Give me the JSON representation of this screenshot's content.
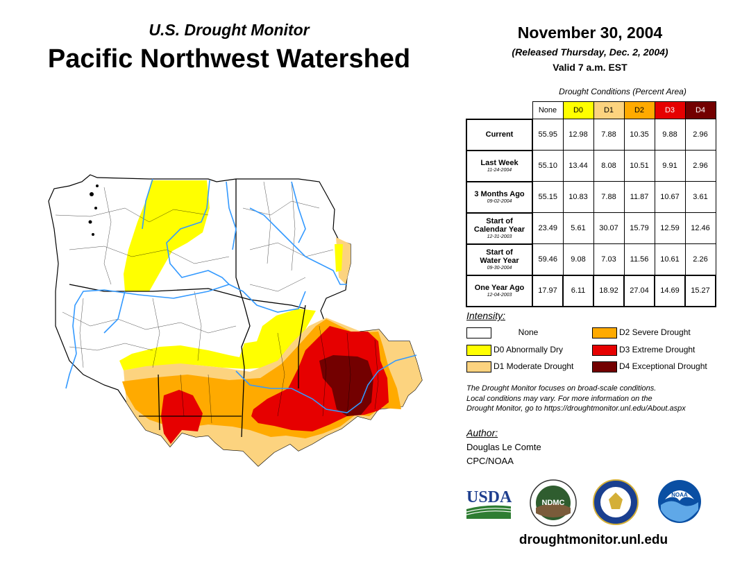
{
  "header": {
    "subtitle": "U.S. Drought Monitor",
    "title": "Pacific Northwest Watershed",
    "date": "November 30, 2004",
    "released": "(Released Thursday, Dec. 2, 2004)",
    "valid": "Valid 7 a.m. EST"
  },
  "table": {
    "caption": "Drought Conditions (Percent Area)",
    "columns": [
      "None",
      "D0",
      "D1",
      "D2",
      "D3",
      "D4"
    ],
    "column_colors": [
      "#ffffff",
      "#ffff00",
      "#fcd37f",
      "#ffaa00",
      "#e60000",
      "#730000"
    ],
    "rows": [
      {
        "label": "Current",
        "label2": "",
        "date": "",
        "values": [
          "55.95",
          "12.98",
          "7.88",
          "10.35",
          "9.88",
          "2.96"
        ]
      },
      {
        "label": "Last Week",
        "label2": "",
        "date": "11-24-2004",
        "values": [
          "55.10",
          "13.44",
          "8.08",
          "10.51",
          "9.91",
          "2.96"
        ]
      },
      {
        "label": "3 Months Ago",
        "label2": "",
        "date": "09-02-2004",
        "values": [
          "55.15",
          "10.83",
          "7.88",
          "11.87",
          "10.67",
          "3.61"
        ]
      },
      {
        "label": "Start of",
        "label2": "Calendar Year",
        "date": "12-31-2003",
        "values": [
          "23.49",
          "5.61",
          "30.07",
          "15.79",
          "12.59",
          "12.46"
        ]
      },
      {
        "label": "Start of",
        "label2": "Water Year",
        "date": "09-30-2004",
        "values": [
          "59.46",
          "9.08",
          "7.03",
          "11.56",
          "10.61",
          "2.26"
        ]
      },
      {
        "label": "One Year Ago",
        "label2": "",
        "date": "12-04-2003",
        "values": [
          "17.97",
          "6.11",
          "18.92",
          "27.04",
          "14.69",
          "15.27"
        ]
      }
    ]
  },
  "legend": {
    "title": "Intensity:",
    "items": [
      {
        "label": "None",
        "color": "#ffffff"
      },
      {
        "label": "D0 Abnormally Dry",
        "color": "#ffff00"
      },
      {
        "label": "D1 Moderate Drought",
        "color": "#fcd37f"
      },
      {
        "label": "D2 Severe Drought",
        "color": "#ffaa00"
      },
      {
        "label": "D3 Extreme Drought",
        "color": "#e60000"
      },
      {
        "label": "D4 Exceptional Drought",
        "color": "#730000"
      }
    ]
  },
  "note": {
    "line1": "The Drought Monitor focuses on broad-scale conditions.",
    "line2": "Local conditions may vary. For more information on the",
    "line3": "Drought Monitor, go to https://droughtmonitor.unl.edu/About.aspx"
  },
  "author": {
    "label": "Author:",
    "name": "Douglas Le Comte",
    "org": "CPC/NOAA"
  },
  "logos": {
    "usda": "USDA",
    "ndmc": "NDMC",
    "noaa": "NOAA"
  },
  "website": "droughtmonitor.unl.edu",
  "map_colors": {
    "none": "#ffffff",
    "d0": "#ffff00",
    "d1": "#fcd37f",
    "d2": "#ffaa00",
    "d3": "#e60000",
    "d4": "#730000",
    "rivers": "#3399ff",
    "boundaries": "#000000"
  }
}
